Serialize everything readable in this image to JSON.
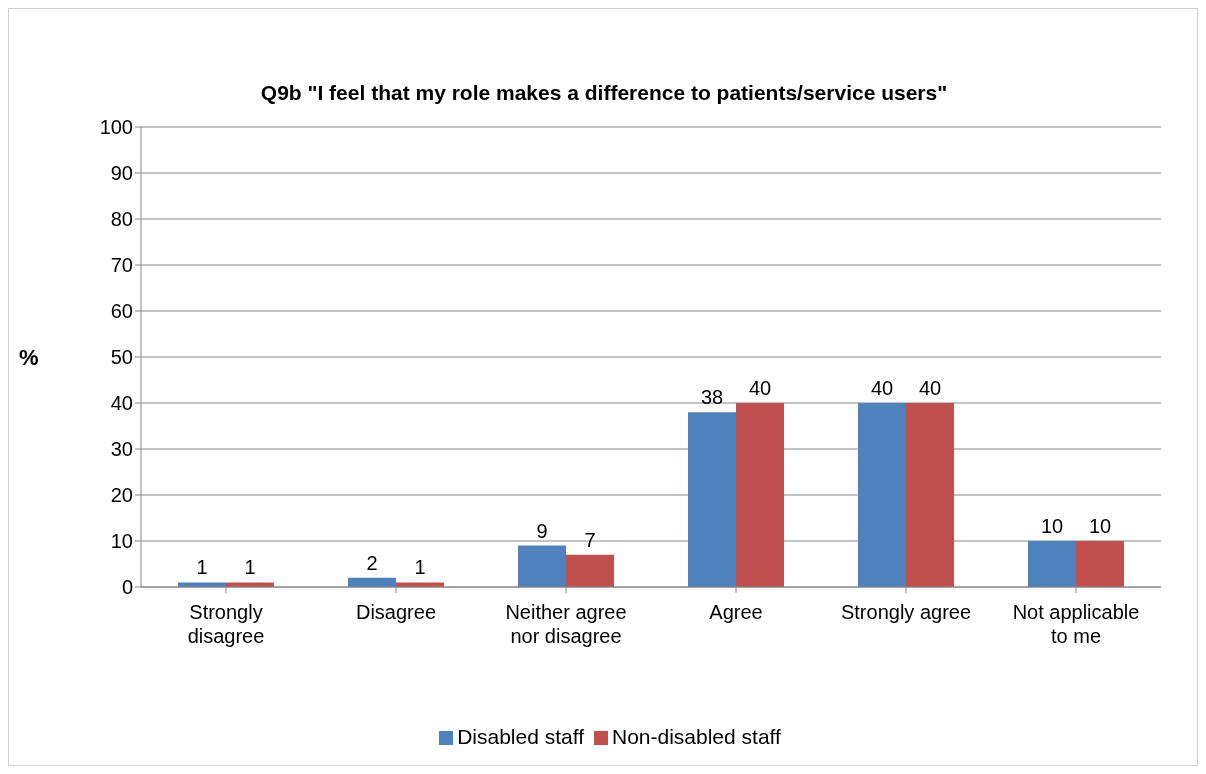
{
  "chart_data": {
    "type": "bar",
    "title": "Q9b \"I feel that my role makes a difference to patients/service users\"",
    "ylabel": "%",
    "categories": [
      "Strongly disagree",
      "Disagree",
      "Neither agree nor disagree",
      "Agree",
      "Strongly agree",
      "Not applicable to me"
    ],
    "series": [
      {
        "name": "Disabled staff",
        "color": "#4f81bd",
        "values": [
          1,
          2,
          9,
          38,
          40,
          10
        ]
      },
      {
        "name": "Non-disabled staff",
        "color": "#c0504d",
        "values": [
          1,
          1,
          7,
          40,
          40,
          10
        ]
      }
    ],
    "ylim": [
      0,
      100
    ],
    "yticks": [
      0,
      10,
      20,
      30,
      40,
      50,
      60,
      70,
      80,
      90,
      100
    ],
    "grid": "y",
    "legend": "bottom",
    "data_labels": true
  }
}
